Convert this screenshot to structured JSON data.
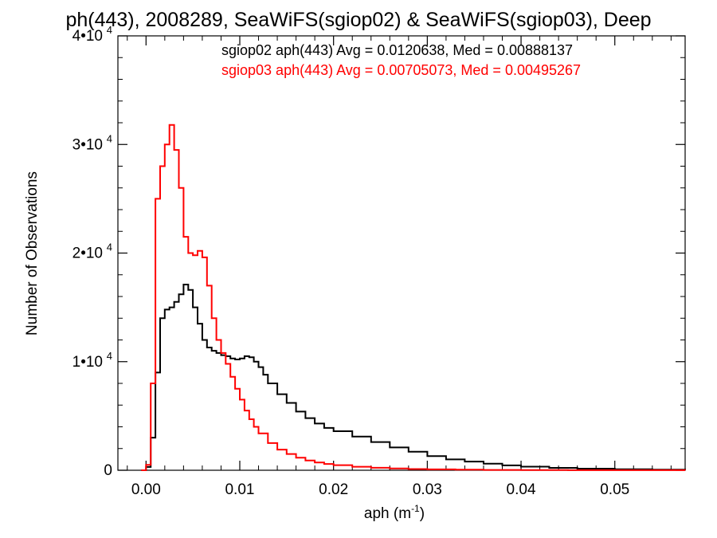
{
  "chart_data": {
    "type": "line",
    "title": "ph(443), 2008289, SeaWiFS(sgiop02) & SeaWiFS(sgiop03), Deep",
    "xlabel": "aph (m",
    "xlabel_sup": "-1",
    "xlabel_tail": ")",
    "ylabel": "Number of Observations",
    "xlim": [
      -0.003,
      0.0575
    ],
    "ylim": [
      0,
      40000
    ],
    "x_ticks": [
      {
        "value": 0.0,
        "label": "0.00"
      },
      {
        "value": 0.01,
        "label": "0.01"
      },
      {
        "value": 0.02,
        "label": "0.02"
      },
      {
        "value": 0.03,
        "label": "0.03"
      },
      {
        "value": 0.04,
        "label": "0.04"
      },
      {
        "value": 0.05,
        "label": "0.05"
      }
    ],
    "y_ticks": [
      {
        "value": 0,
        "label": "0",
        "exp": ""
      },
      {
        "value": 10000,
        "label": "1•10",
        "exp": "4"
      },
      {
        "value": 20000,
        "label": "2•10",
        "exp": "4"
      },
      {
        "value": 30000,
        "label": "3•10",
        "exp": "4"
      },
      {
        "value": 40000,
        "label": "4•10",
        "exp": "4"
      }
    ],
    "grid": false,
    "legend_position": "top-right",
    "series": [
      {
        "name": "sgiop02 aph(443) Avg = 0.0120638, Med = 0.00888137",
        "color": "#000000",
        "x": [
          -0.0005,
          0.0,
          0.0005,
          0.001,
          0.0015,
          0.002,
          0.0025,
          0.003,
          0.0035,
          0.004,
          0.0045,
          0.005,
          0.0055,
          0.006,
          0.0065,
          0.007,
          0.0075,
          0.008,
          0.0085,
          0.009,
          0.0095,
          0.01,
          0.0105,
          0.011,
          0.0115,
          0.012,
          0.0125,
          0.013,
          0.014,
          0.015,
          0.016,
          0.017,
          0.018,
          0.019,
          0.02,
          0.022,
          0.024,
          0.026,
          0.028,
          0.03,
          0.032,
          0.034,
          0.036,
          0.038,
          0.04,
          0.043,
          0.046,
          0.05,
          0.054,
          0.0575
        ],
        "y": [
          0,
          300,
          3000,
          9000,
          14000,
          14800,
          15000,
          15500,
          16200,
          17100,
          16600,
          15000,
          13500,
          12000,
          11300,
          11000,
          10800,
          10600,
          10500,
          10300,
          10200,
          10300,
          10500,
          10400,
          10000,
          9500,
          8800,
          8000,
          7000,
          6200,
          5400,
          4800,
          4300,
          3900,
          3600,
          3100,
          2600,
          2100,
          1700,
          1300,
          1000,
          800,
          600,
          450,
          330,
          220,
          150,
          90,
          50,
          30
        ]
      },
      {
        "name": "sgiop03 aph(443) Avg = 0.00705073, Med = 0.00495267",
        "color": "#ff0000",
        "x": [
          -0.0005,
          0.0,
          0.0005,
          0.001,
          0.0015,
          0.002,
          0.0025,
          0.003,
          0.0035,
          0.004,
          0.0045,
          0.005,
          0.0055,
          0.006,
          0.0065,
          0.007,
          0.0075,
          0.008,
          0.0085,
          0.009,
          0.0095,
          0.01,
          0.0105,
          0.011,
          0.0115,
          0.012,
          0.013,
          0.014,
          0.015,
          0.016,
          0.017,
          0.018,
          0.019,
          0.02,
          0.022,
          0.024,
          0.026,
          0.028,
          0.03,
          0.033,
          0.036,
          0.04,
          0.045,
          0.05,
          0.0575
        ],
        "y": [
          0,
          500,
          8000,
          25000,
          28000,
          30000,
          31800,
          29500,
          26000,
          21500,
          20000,
          19800,
          20200,
          19600,
          17000,
          14000,
          12000,
          10800,
          9800,
          8600,
          7500,
          6500,
          5500,
          4700,
          4000,
          3400,
          2500,
          1900,
          1500,
          1150,
          900,
          720,
          580,
          470,
          320,
          230,
          160,
          110,
          80,
          50,
          30,
          20,
          10,
          5,
          2
        ]
      }
    ]
  }
}
